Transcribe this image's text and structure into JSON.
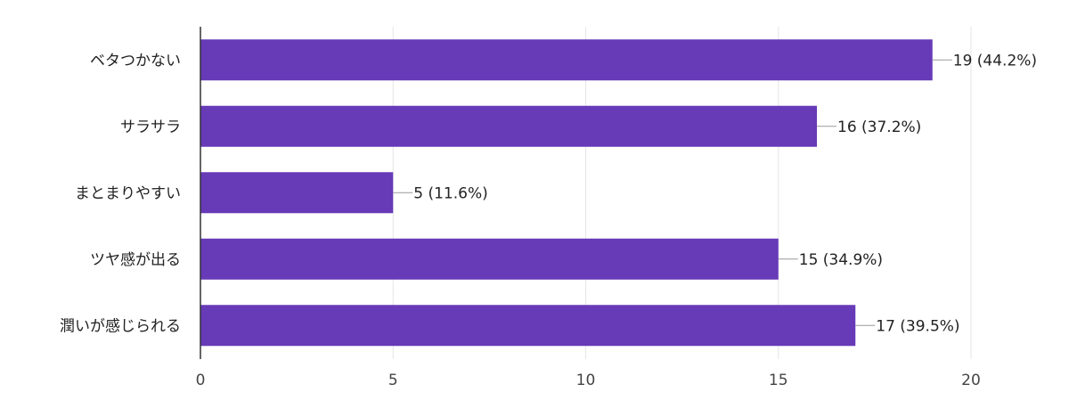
{
  "chart_data": {
    "type": "bar",
    "orientation": "horizontal",
    "categories": [
      "ベタつかない",
      "サラサラ",
      "まとまりやすい",
      "ツヤ感が出る",
      "潤いが感じられる"
    ],
    "values": [
      19,
      16,
      5,
      15,
      17
    ],
    "data_labels": [
      "19 (44.2%)",
      "16 (37.2%)",
      "5 (11.6%)",
      "15 (34.9%)",
      "17 (39.5%)"
    ],
    "xlim": [
      0,
      20
    ],
    "x_ticks": [
      0,
      5,
      10,
      15,
      20
    ],
    "grid": true,
    "legend": "none",
    "colors": {
      "bar": "#673ab7",
      "grid": "#e6e6e6",
      "axis": "#333333",
      "leader_line": "#999999"
    }
  }
}
